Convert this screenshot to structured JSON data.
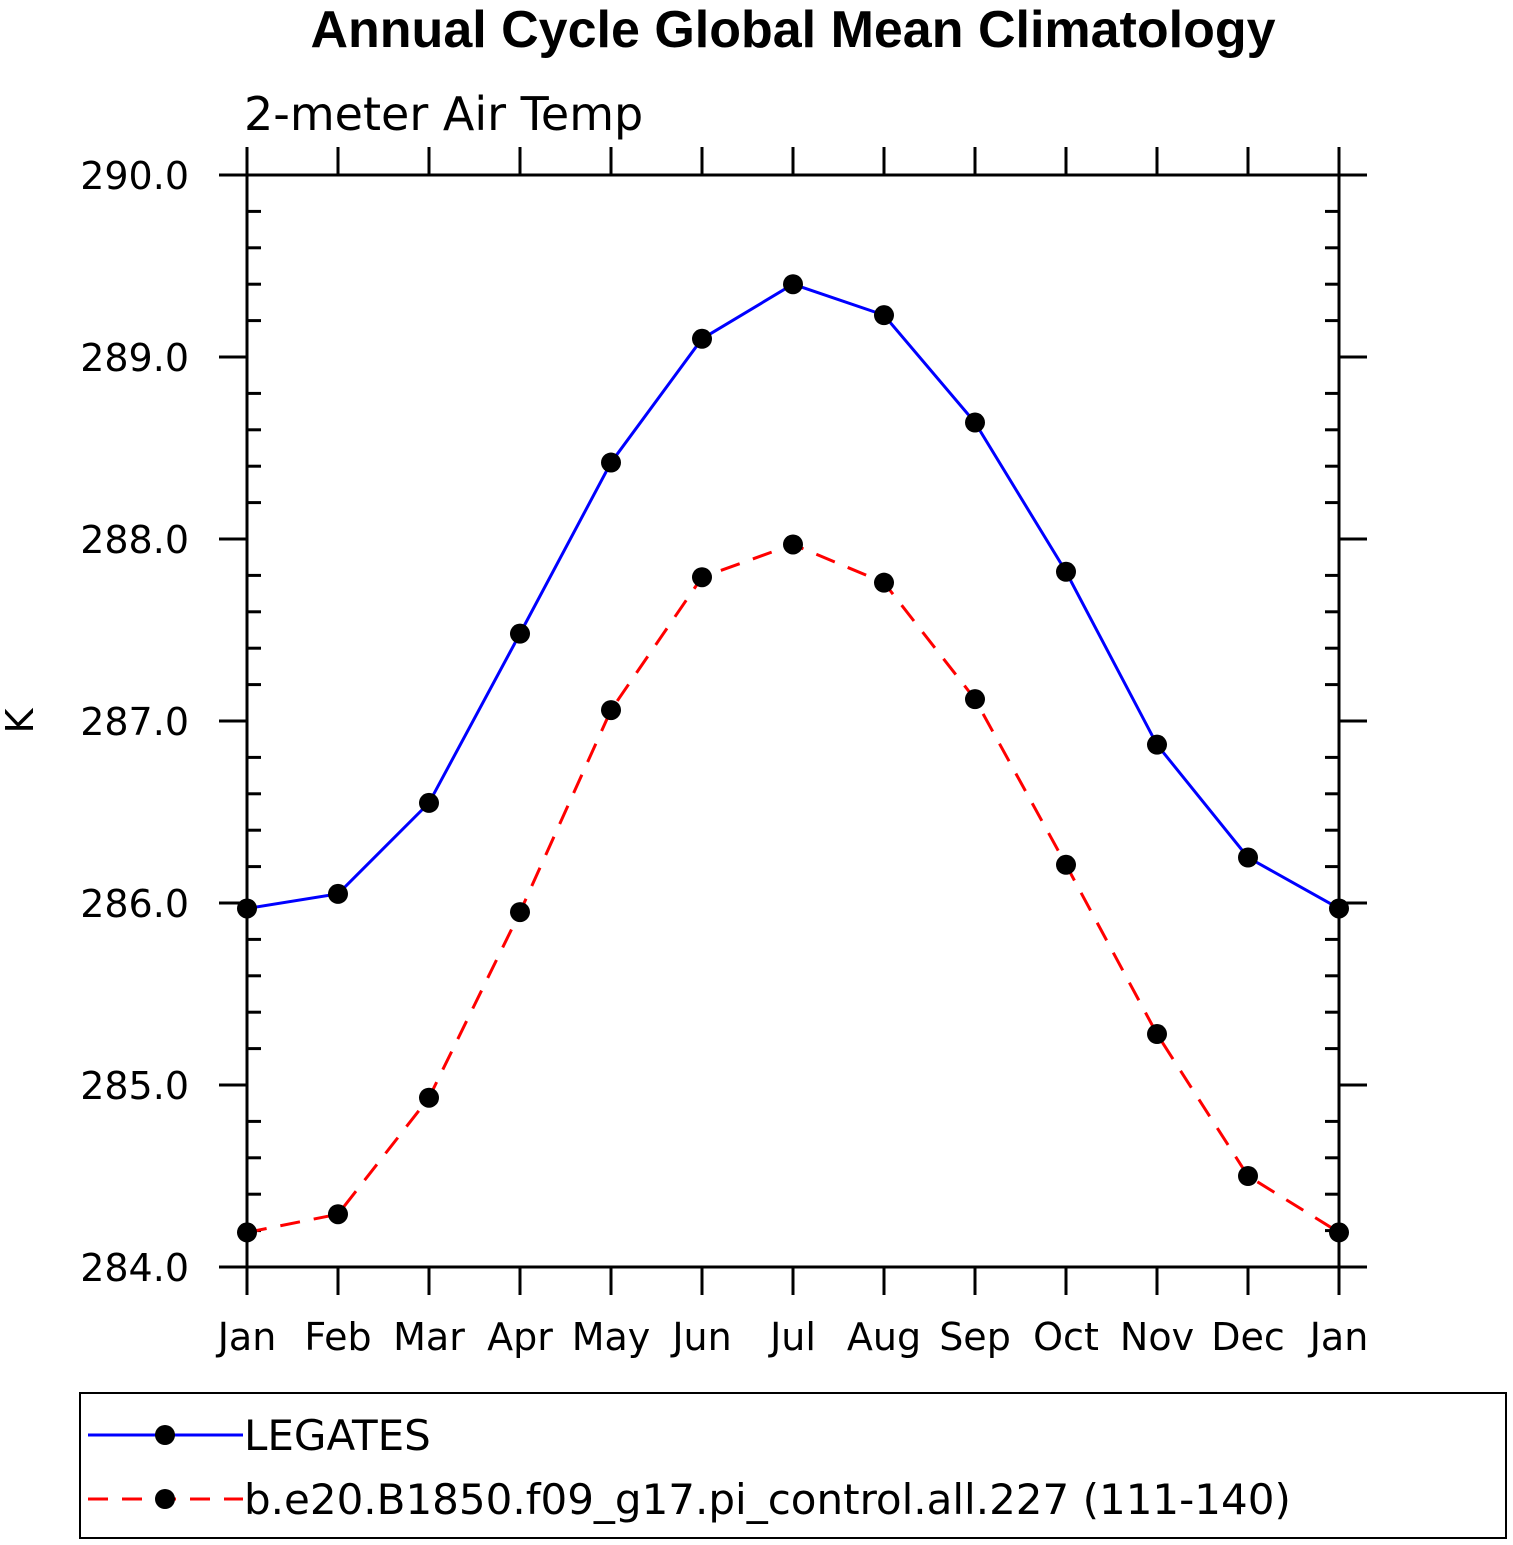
{
  "chart_data": {
    "type": "line",
    "title": "Annual Cycle Global Mean Climatology",
    "subtitle": "2-meter Air Temp",
    "xlabel": "",
    "ylabel": "K",
    "categories": [
      "Jan",
      "Feb",
      "Mar",
      "Apr",
      "May",
      "Jun",
      "Jul",
      "Aug",
      "Sep",
      "Oct",
      "Nov",
      "Dec",
      "Jan"
    ],
    "ylim": [
      284.0,
      290.0
    ],
    "y_ticks": [
      "284.0",
      "285.0",
      "286.0",
      "287.0",
      "288.0",
      "289.0",
      "290.0"
    ],
    "y_minor_step": 0.2,
    "grid": false,
    "legend_position": "bottom",
    "series": [
      {
        "name": "LEGATES",
        "color": "#0000ff",
        "line_style": "solid",
        "marker": "filled-circle",
        "values": [
          285.97,
          286.05,
          286.55,
          287.48,
          288.42,
          289.1,
          289.4,
          289.23,
          288.64,
          287.82,
          286.87,
          286.25,
          285.97
        ]
      },
      {
        "name": "b.e20.B1850.f09_g17.pi_control.all.227 (111-140)",
        "color": "#ff0000",
        "line_style": "dashed",
        "marker": "filled-circle",
        "values": [
          284.19,
          284.29,
          284.93,
          285.95,
          287.06,
          287.79,
          287.97,
          287.76,
          287.12,
          286.21,
          285.28,
          284.5,
          284.19
        ]
      }
    ]
  }
}
